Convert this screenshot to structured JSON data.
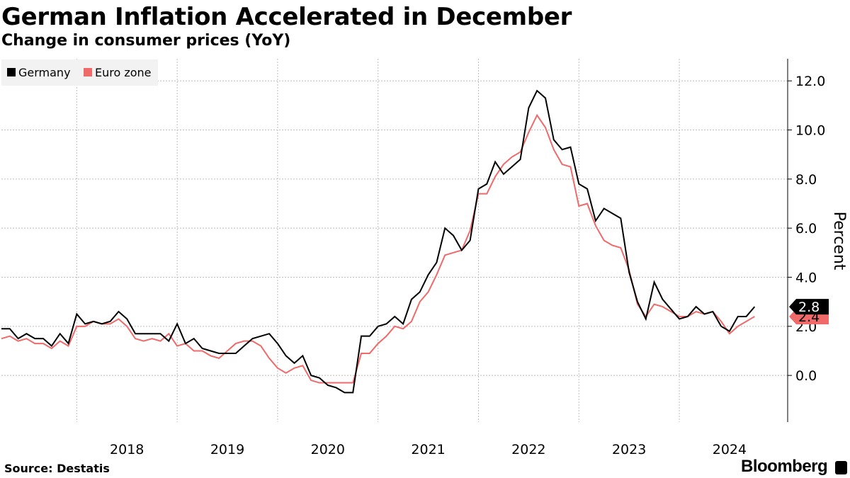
{
  "title": "German Inflation Accelerated in December",
  "subtitle": "Change in consumer prices (YoY)",
  "source": "Source: Destatis",
  "brand": "Bloomberg",
  "colors": {
    "germany": "#000000",
    "euro_zone": "#f06a6a",
    "grid": "#bdbdbd",
    "legend_bg": "#f2f2f2"
  },
  "chart_data": {
    "type": "line",
    "title": "German Inflation Accelerated in December",
    "subtitle": "Change in consumer prices (YoY)",
    "xlabel": "",
    "ylabel": "Percent",
    "ylim": [
      -1.9,
      12.9
    ],
    "yticks": [
      0.0,
      2.0,
      4.0,
      6.0,
      8.0,
      10.0,
      12.0
    ],
    "ytick_labels": [
      "0.0",
      "2.0",
      "4.0",
      "6.0",
      "8.0",
      "10.0",
      "12.0"
    ],
    "x_start": "2017-04",
    "x_end": "2024-12",
    "xticks": [
      "2018",
      "2019",
      "2020",
      "2021",
      "2022",
      "2023",
      "2024"
    ],
    "grid": true,
    "legend": "top-left",
    "axis_side": "right",
    "series": [
      {
        "name": "Germany",
        "last_label": "2.8",
        "values": [
          1.9,
          1.9,
          1.5,
          1.7,
          1.5,
          1.5,
          1.2,
          1.7,
          1.3,
          2.5,
          2.1,
          2.2,
          2.1,
          2.2,
          2.6,
          2.3,
          1.7,
          1.7,
          1.7,
          1.7,
          1.4,
          2.1,
          1.3,
          1.5,
          1.1,
          1.0,
          0.9,
          0.9,
          0.9,
          1.2,
          1.5,
          1.6,
          1.7,
          1.3,
          0.8,
          0.5,
          0.8,
          0.0,
          -0.1,
          -0.4,
          -0.5,
          -0.7,
          -0.7,
          1.6,
          1.6,
          2.0,
          2.1,
          2.4,
          2.1,
          3.1,
          3.4,
          4.1,
          4.6,
          6.0,
          5.7,
          5.1,
          5.5,
          7.6,
          7.8,
          8.7,
          8.2,
          8.5,
          8.8,
          10.9,
          11.6,
          11.3,
          9.6,
          9.2,
          9.3,
          7.8,
          7.6,
          6.3,
          6.8,
          6.6,
          6.4,
          4.2,
          3.0,
          2.3,
          3.8,
          3.1,
          2.7,
          2.3,
          2.4,
          2.8,
          2.5,
          2.6,
          2.0,
          1.8,
          2.4,
          2.4,
          2.8
        ]
      },
      {
        "name": "Euro zone",
        "last_label": "2.4",
        "values": [
          1.5,
          1.6,
          1.4,
          1.5,
          1.3,
          1.3,
          1.1,
          1.4,
          1.2,
          2.0,
          2.0,
          2.2,
          2.1,
          2.1,
          2.3,
          2.0,
          1.5,
          1.4,
          1.5,
          1.4,
          1.7,
          1.2,
          1.3,
          1.0,
          1.0,
          0.8,
          0.7,
          1.0,
          1.3,
          1.4,
          1.4,
          1.2,
          0.7,
          0.3,
          0.1,
          0.3,
          0.4,
          -0.2,
          -0.3,
          -0.3,
          -0.3,
          -0.3,
          -0.3,
          0.9,
          0.9,
          1.3,
          1.6,
          2.0,
          1.9,
          2.2,
          3.0,
          3.4,
          4.1,
          4.9,
          5.0,
          5.1,
          5.9,
          7.4,
          7.4,
          8.1,
          8.6,
          8.9,
          9.1,
          9.9,
          10.6,
          10.1,
          9.2,
          8.6,
          8.5,
          6.9,
          7.0,
          6.1,
          5.5,
          5.3,
          5.2,
          4.3,
          2.9,
          2.4,
          2.9,
          2.8,
          2.6,
          2.4,
          2.4,
          2.6,
          2.5,
          2.6,
          2.2,
          1.7,
          2.0,
          2.2,
          2.4
        ]
      }
    ]
  }
}
